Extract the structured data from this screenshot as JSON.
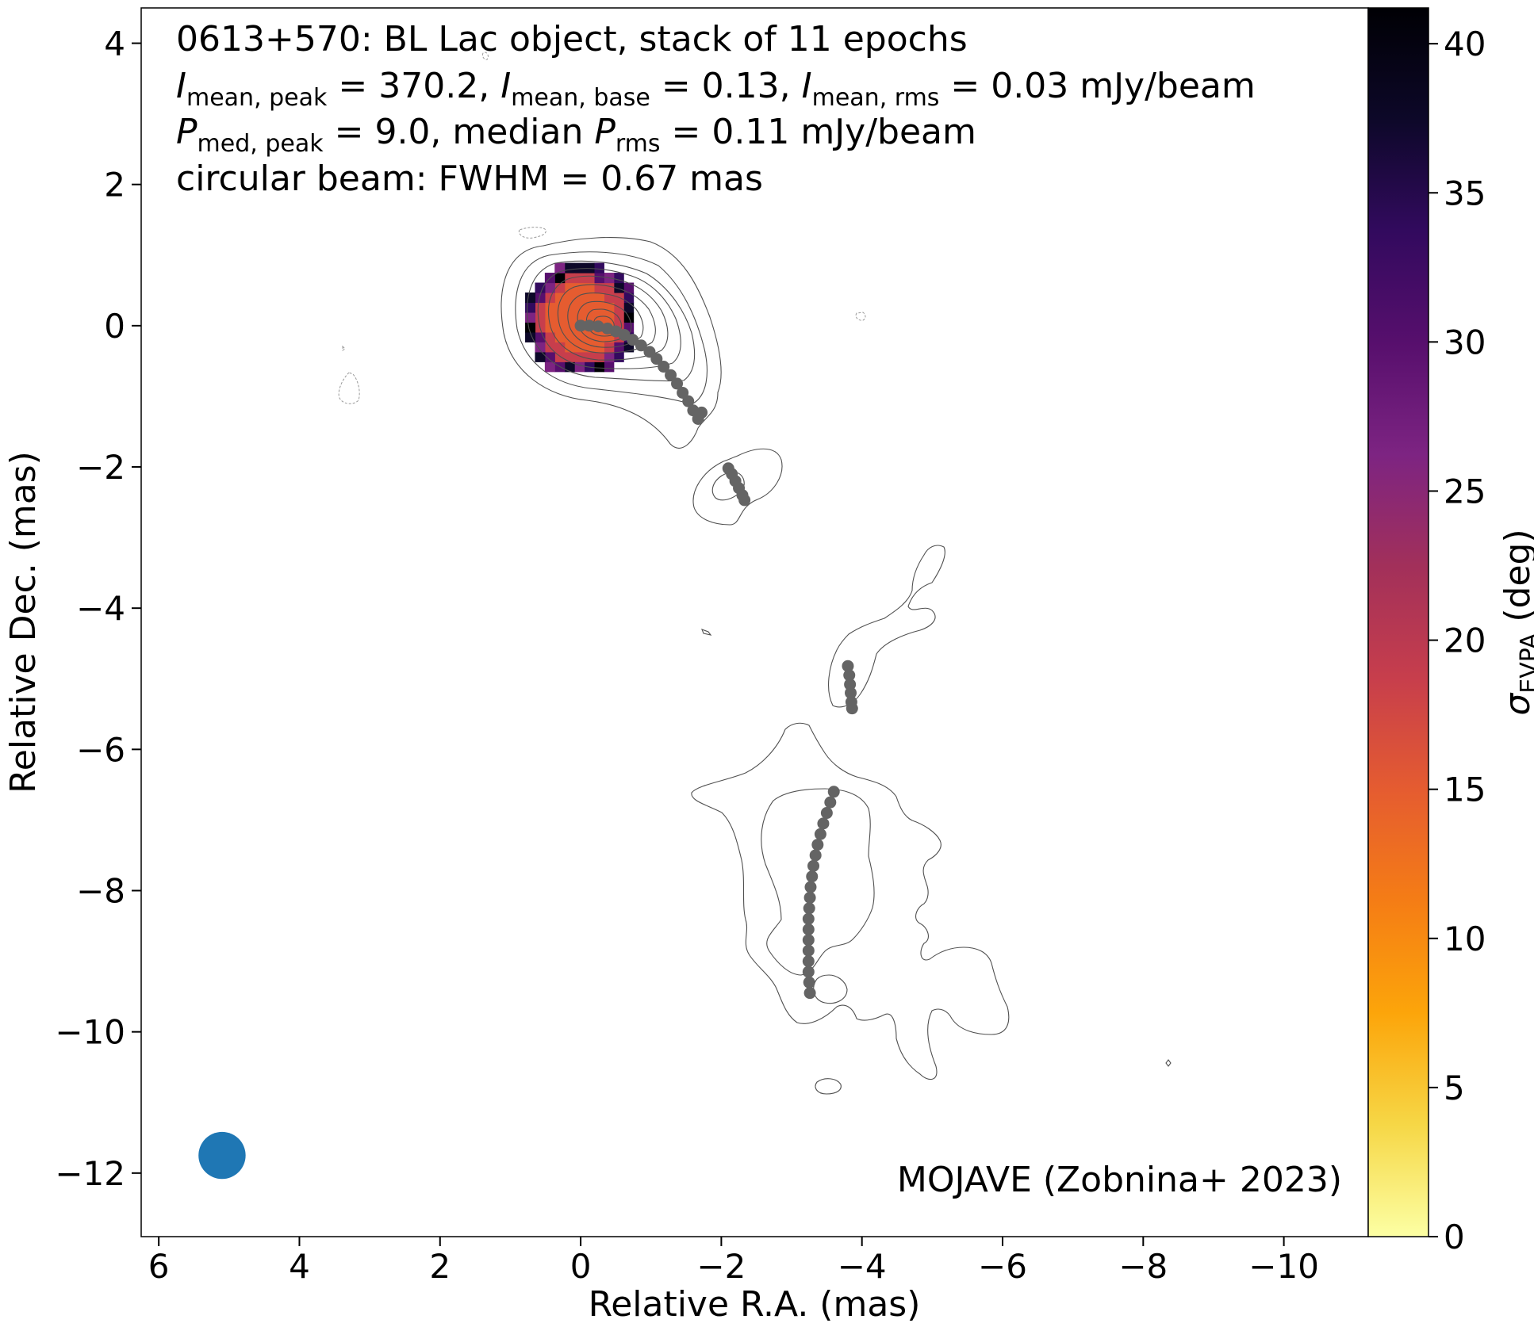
{
  "chart_data": {
    "type": "scatter",
    "annotation_lines": [
      "0613+570: BL Lac object, stack of 11 epochs",
      "I_mean,peak = 370.2, I_mean,base = 0.13, I_mean,rms = 0.03 mJy/beam",
      "P_med,peak = 9.0, median P_rms = 0.11 mJy/beam",
      "circular beam: FWHM = 0.67 mas"
    ],
    "credit": "MOJAVE (Zobnina+ 2023)",
    "xlabel": "Relative R.A. (mas)",
    "ylabel": "Relative Dec. (mas)",
    "xlim": [
      6.25,
      -11.2
    ],
    "ylim": [
      -12.9,
      4.5
    ],
    "xticks": [
      6,
      4,
      2,
      0,
      -2,
      -4,
      -6,
      -8,
      -10
    ],
    "xtick_labels": [
      "6",
      "4",
      "2",
      "0",
      "−2",
      "−4",
      "−6",
      "−8",
      "−10"
    ],
    "yticks": [
      4,
      2,
      0,
      -2,
      -4,
      -6,
      -8,
      -10,
      -12
    ],
    "ytick_labels": [
      "4",
      "2",
      "0",
      "−2",
      "−4",
      "−6",
      "−8",
      "−10",
      "−12"
    ],
    "colorbar": {
      "label": "σ_EVPA (deg)",
      "range": [
        0,
        41.2
      ],
      "ticks": [
        0,
        5,
        10,
        15,
        20,
        25,
        30,
        35,
        40
      ],
      "tick_labels": [
        "0",
        "5",
        "10",
        "15",
        "20",
        "25",
        "30",
        "35",
        "40"
      ],
      "colormap": "inferno_r",
      "colors": [
        "#fcffa4",
        "#f6d746",
        "#fca50a",
        "#f57d15",
        "#e55c30",
        "#c73e4c",
        "#a2305a",
        "#7d2482",
        "#570f6d",
        "#320a5e",
        "#0d0829",
        "#000004"
      ]
    },
    "ridgeline_points": [
      [
        0.0,
        0.0
      ],
      [
        -0.12,
        0.0
      ],
      [
        -0.25,
        -0.01
      ],
      [
        -0.38,
        -0.04
      ],
      [
        -0.5,
        -0.08
      ],
      [
        -0.62,
        -0.13
      ],
      [
        -0.74,
        -0.2
      ],
      [
        -0.86,
        -0.28
      ],
      [
        -0.98,
        -0.37
      ],
      [
        -1.08,
        -0.47
      ],
      [
        -1.18,
        -0.58
      ],
      [
        -1.28,
        -0.7
      ],
      [
        -1.37,
        -0.82
      ],
      [
        -1.45,
        -0.95
      ],
      [
        -1.53,
        -1.07
      ],
      [
        -1.6,
        -1.2
      ],
      [
        -1.67,
        -1.32
      ],
      [
        -1.72,
        -1.23
      ],
      [
        -2.1,
        -2.02
      ],
      [
        -2.15,
        -2.1
      ],
      [
        -2.2,
        -2.2
      ],
      [
        -2.25,
        -2.3
      ],
      [
        -2.3,
        -2.4
      ],
      [
        -2.33,
        -2.47
      ],
      [
        -3.8,
        -4.82
      ],
      [
        -3.82,
        -4.95
      ],
      [
        -3.83,
        -5.08
      ],
      [
        -3.84,
        -5.2
      ],
      [
        -3.85,
        -5.33
      ],
      [
        -3.86,
        -5.42
      ],
      [
        -3.6,
        -6.6
      ],
      [
        -3.55,
        -6.75
      ],
      [
        -3.5,
        -6.9
      ],
      [
        -3.45,
        -7.05
      ],
      [
        -3.41,
        -7.2
      ],
      [
        -3.37,
        -7.35
      ],
      [
        -3.34,
        -7.5
      ],
      [
        -3.31,
        -7.65
      ],
      [
        -3.29,
        -7.8
      ],
      [
        -3.27,
        -7.95
      ],
      [
        -3.26,
        -8.1
      ],
      [
        -3.25,
        -8.25
      ],
      [
        -3.24,
        -8.4
      ],
      [
        -3.24,
        -8.55
      ],
      [
        -3.24,
        -8.7
      ],
      [
        -3.24,
        -8.85
      ],
      [
        -3.24,
        -9.0
      ],
      [
        -3.24,
        -9.15
      ],
      [
        -3.25,
        -9.3
      ],
      [
        -3.26,
        -9.45
      ]
    ],
    "beam": {
      "ra": 5.1,
      "dec": -11.75,
      "fwhm": 0.67,
      "color": "#1f77b4"
    },
    "evpa_patch": {
      "center": [
        0.0,
        0.1
      ],
      "typical_value": 15
    },
    "ridgeline_color": "#646464",
    "contour_color": "#505050"
  }
}
